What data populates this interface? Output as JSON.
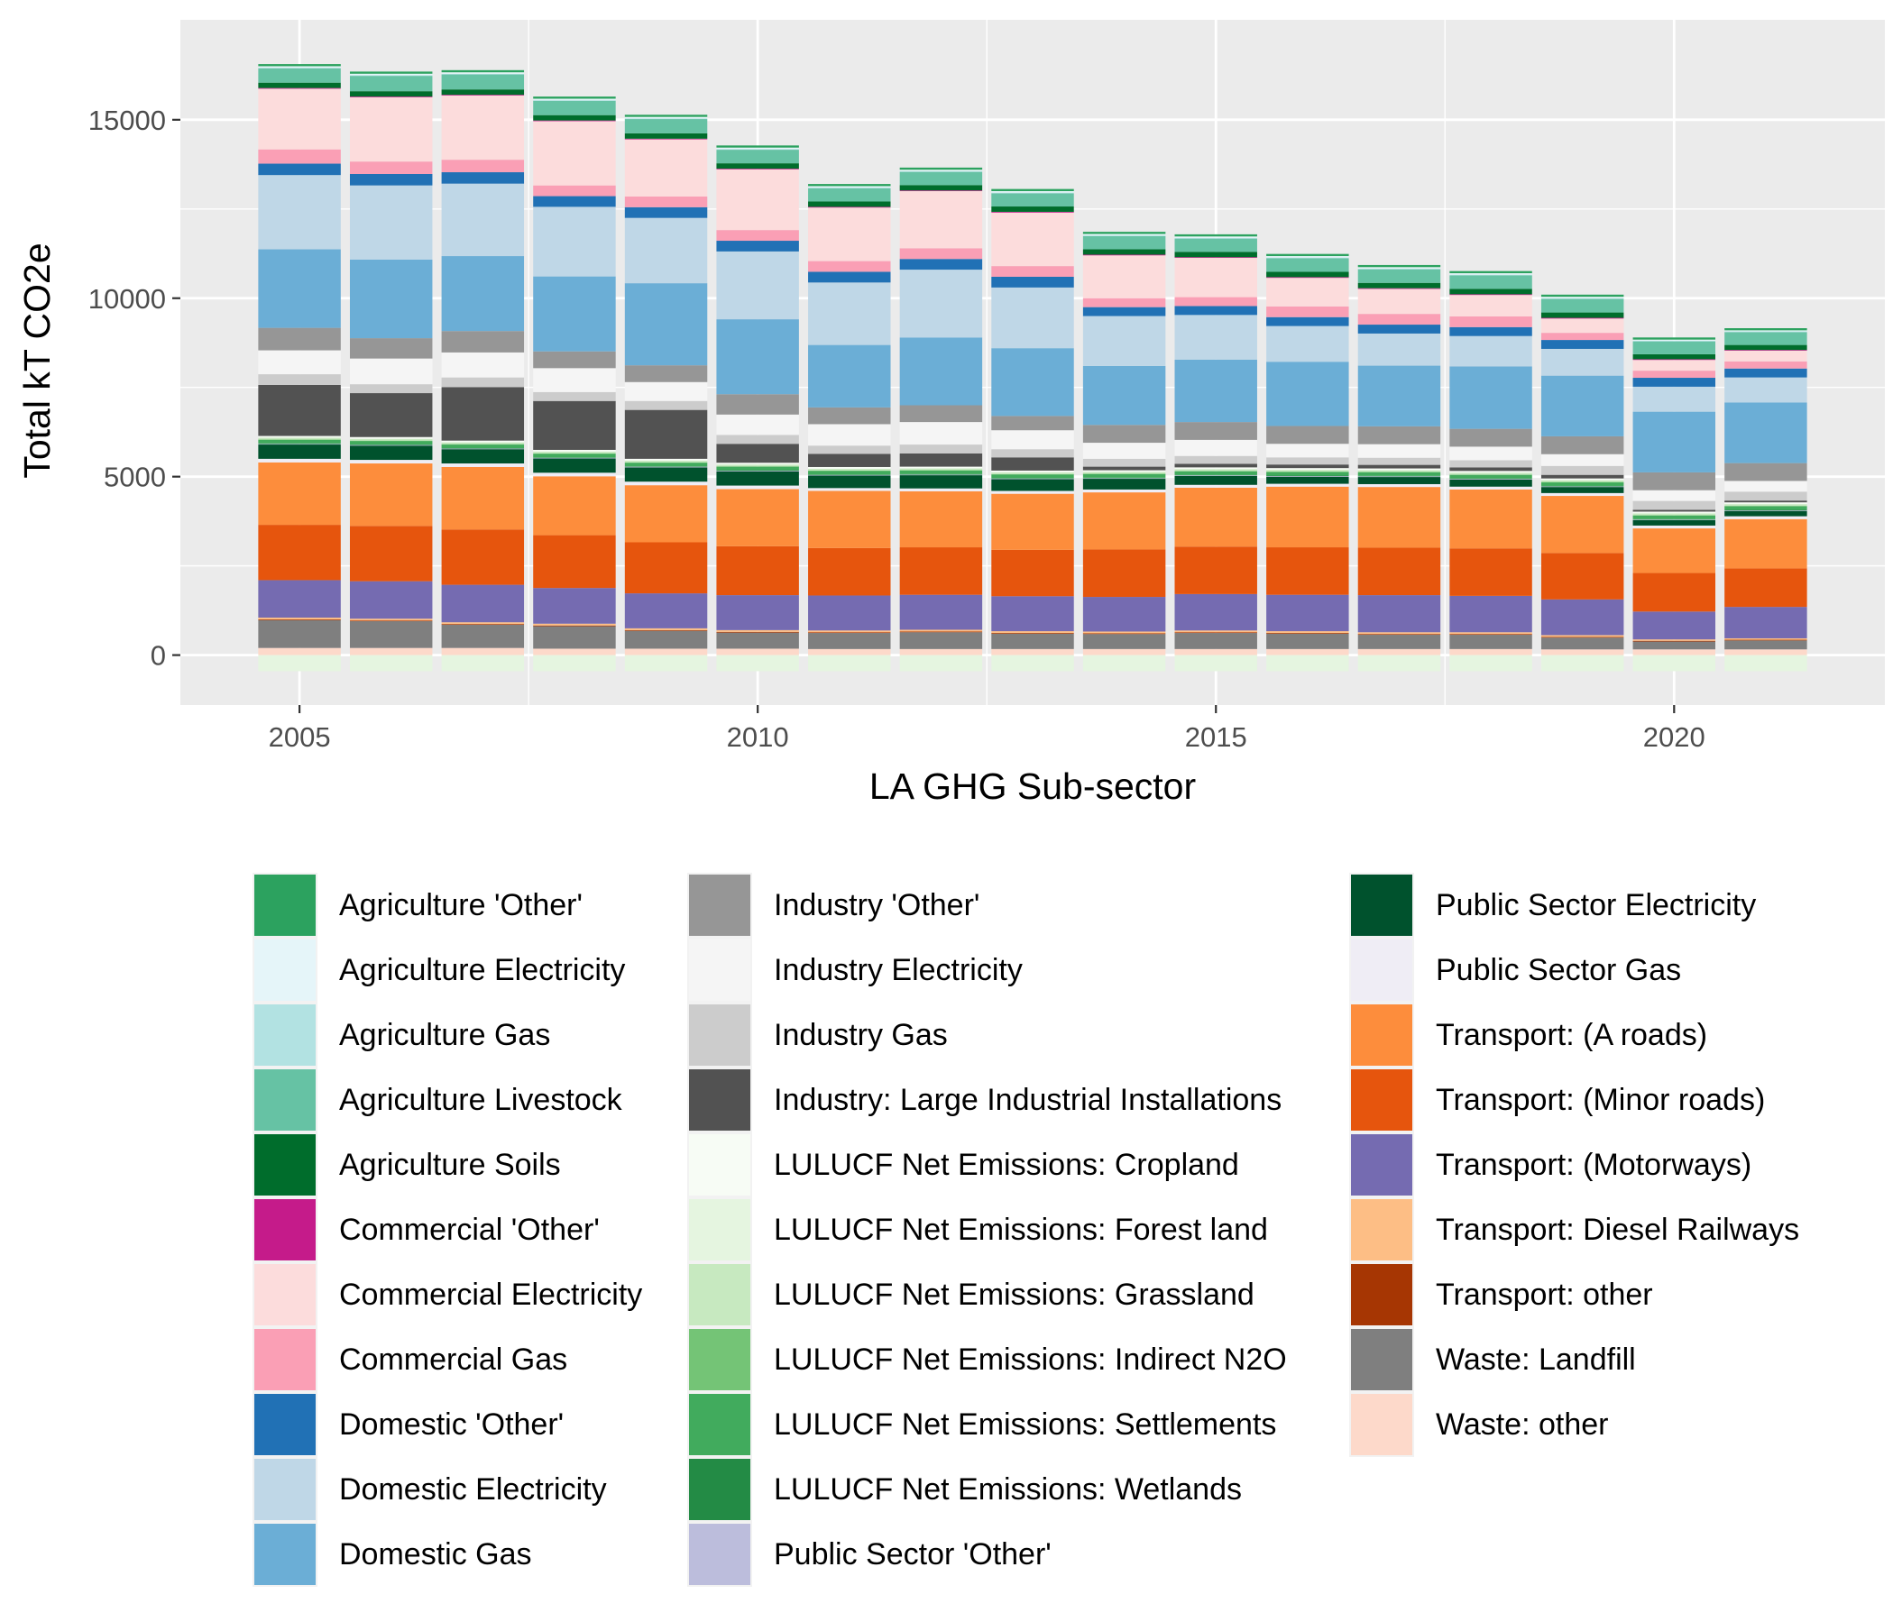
{
  "chart_data": {
    "type": "bar",
    "stacked": true,
    "title": "",
    "xlabel": "LA GHG Sub-sector",
    "ylabel": "Total kT CO2e",
    "x": [
      2005,
      2006,
      2007,
      2008,
      2009,
      2010,
      2011,
      2012,
      2013,
      2014,
      2015,
      2016,
      2017,
      2018,
      2019,
      2020,
      2021
    ],
    "xticks": [
      "2005",
      "2010",
      "2015",
      "2020"
    ],
    "yticks": [
      "0",
      "5000",
      "10000",
      "15000"
    ],
    "ylim": [
      -1400,
      17800
    ],
    "xlim": [
      2003.7,
      2022.3
    ],
    "grid": true,
    "legend_position": "bottom",
    "positive_stack_order": [
      "Waste: other",
      "Waste: Landfill",
      "Transport: other",
      "Transport: Diesel Railways",
      "Transport: (Motorways)",
      "Transport: (Minor roads)",
      "Transport: (A roads)",
      "Public Sector Gas",
      "Public Sector Electricity",
      "Public Sector 'Other'",
      "LULUCF Net Emissions: Wetlands",
      "LULUCF Net Emissions: Settlements",
      "LULUCF Net Emissions: Indirect N2O",
      "LULUCF Net Emissions: Grassland",
      "LULUCF Net Emissions: Cropland",
      "Industry: Large Industrial Installations",
      "Industry Gas",
      "Industry Electricity",
      "Industry 'Other'",
      "Domestic Gas",
      "Domestic Electricity",
      "Domestic 'Other'",
      "Commercial Gas",
      "Commercial Electricity",
      "Commercial 'Other'",
      "Agriculture Soils",
      "Agriculture Livestock",
      "Agriculture Gas",
      "Agriculture Electricity",
      "Agriculture 'Other'"
    ],
    "series": [
      {
        "name": "Agriculture 'Other'",
        "color": "#2ca25f",
        "values": [
          60,
          60,
          60,
          60,
          60,
          60,
          60,
          60,
          60,
          60,
          60,
          60,
          60,
          60,
          60,
          60,
          60
        ]
      },
      {
        "name": "Agriculture Electricity",
        "color": "#e5f5f9",
        "values": [
          40,
          40,
          40,
          40,
          40,
          40,
          40,
          40,
          40,
          40,
          40,
          40,
          40,
          40,
          40,
          30,
          30
        ]
      },
      {
        "name": "Agriculture Gas",
        "color": "#b2e2e2",
        "values": [
          20,
          20,
          20,
          20,
          20,
          20,
          20,
          20,
          20,
          20,
          20,
          20,
          20,
          20,
          20,
          20,
          20
        ]
      },
      {
        "name": "Agriculture Livestock",
        "color": "#66c2a4",
        "values": [
          400,
          430,
          420,
          400,
          400,
          380,
          370,
          370,
          370,
          370,
          370,
          380,
          380,
          380,
          380,
          360,
          360
        ]
      },
      {
        "name": "Agriculture Soils",
        "color": "#006d2c",
        "values": [
          150,
          150,
          150,
          150,
          150,
          150,
          150,
          150,
          150,
          150,
          150,
          150,
          150,
          150,
          150,
          140,
          140
        ]
      },
      {
        "name": "Commercial 'Other'",
        "color": "#c51b8a",
        "values": [
          20,
          20,
          20,
          20,
          20,
          20,
          20,
          20,
          20,
          20,
          20,
          20,
          20,
          20,
          20,
          20,
          20
        ]
      },
      {
        "name": "Commercial Electricity",
        "color": "#fcdcdc",
        "values": [
          1700,
          1800,
          1800,
          1800,
          1600,
          1700,
          1500,
          1600,
          1500,
          1200,
          1100,
          800,
          700,
          600,
          400,
          300,
          300
        ]
      },
      {
        "name": "Commercial Gas",
        "color": "#fa9fb5",
        "values": [
          400,
          350,
          350,
          300,
          300,
          300,
          300,
          300,
          300,
          250,
          250,
          300,
          300,
          300,
          200,
          200,
          200
        ]
      },
      {
        "name": "Domestic 'Other'",
        "color": "#2171b5",
        "values": [
          320,
          320,
          320,
          300,
          300,
          300,
          300,
          300,
          300,
          250,
          250,
          250,
          250,
          250,
          250,
          250,
          250
        ]
      },
      {
        "name": "Domestic Electricity",
        "color": "#bfd7e7",
        "values": [
          2080,
          2080,
          2030,
          1950,
          1830,
          1900,
          1750,
          1900,
          1700,
          1400,
          1250,
          1000,
          900,
          850,
          750,
          700,
          700
        ]
      },
      {
        "name": "Domestic Gas",
        "color": "#6baed6",
        "values": [
          2200,
          2200,
          2100,
          2100,
          2300,
          2100,
          1750,
          1900,
          1900,
          1650,
          1750,
          1800,
          1700,
          1750,
          1700,
          1700,
          1700
        ]
      },
      {
        "name": "Industry 'Other'",
        "color": "#969696",
        "values": [
          630,
          570,
          600,
          470,
          470,
          570,
          470,
          470,
          400,
          500,
          500,
          500,
          500,
          500,
          500,
          500,
          500
        ]
      },
      {
        "name": "Industry Electricity",
        "color": "#f5f5f5",
        "values": [
          670,
          720,
          700,
          670,
          530,
          570,
          600,
          630,
          530,
          450,
          450,
          380,
          380,
          380,
          330,
          300,
          300
        ]
      },
      {
        "name": "Industry Gas",
        "color": "#cccccc",
        "values": [
          300,
          250,
          270,
          250,
          250,
          250,
          230,
          250,
          230,
          220,
          220,
          200,
          200,
          200,
          250,
          250,
          250
        ]
      },
      {
        "name": "Industry: Large Industrial Installations",
        "color": "#525252",
        "values": [
          1430,
          1230,
          1500,
          1370,
          1370,
          530,
          370,
          370,
          370,
          100,
          100,
          100,
          100,
          100,
          100,
          50,
          50
        ]
      },
      {
        "name": "LULUCF Net Emissions: Cropland",
        "color": "#f7fcf5",
        "values": [
          50,
          50,
          50,
          50,
          50,
          50,
          50,
          50,
          50,
          50,
          50,
          50,
          50,
          50,
          50,
          50,
          50
        ]
      },
      {
        "name": "LULUCF Net Emissions: Grassland",
        "color": "#c7e9c0",
        "values": [
          50,
          50,
          50,
          50,
          50,
          50,
          50,
          50,
          50,
          50,
          50,
          50,
          50,
          50,
          50,
          50,
          50
        ]
      },
      {
        "name": "LULUCF Net Emissions: Indirect N2O",
        "color": "#74c476",
        "values": [
          10,
          10,
          10,
          10,
          10,
          10,
          10,
          10,
          10,
          10,
          10,
          10,
          10,
          10,
          10,
          10,
          10
        ]
      },
      {
        "name": "LULUCF Net Emissions: Settlements",
        "color": "#41ab5d",
        "values": [
          100,
          100,
          100,
          100,
          100,
          100,
          100,
          100,
          100,
          100,
          100,
          100,
          100,
          100,
          100,
          100,
          100
        ]
      },
      {
        "name": "LULUCF Net Emissions: Wetlands",
        "color": "#238b45",
        "values": [
          10,
          10,
          10,
          10,
          10,
          10,
          10,
          10,
          10,
          10,
          10,
          10,
          10,
          10,
          10,
          10,
          10
        ]
      },
      {
        "name": "Public Sector 'Other'",
        "color": "#bcbddc",
        "values": [
          20,
          20,
          20,
          20,
          20,
          20,
          20,
          20,
          20,
          20,
          20,
          20,
          20,
          20,
          20,
          20,
          20
        ]
      },
      {
        "name": "Public Sector Electricity",
        "color": "#00522d",
        "values": [
          400,
          400,
          400,
          400,
          400,
          400,
          350,
          370,
          330,
          300,
          250,
          200,
          200,
          200,
          170,
          150,
          150
        ]
      },
      {
        "name": "Public Sector Gas",
        "color": "#efedf5",
        "values": [
          100,
          100,
          100,
          100,
          100,
          100,
          80,
          80,
          80,
          80,
          80,
          80,
          80,
          80,
          80,
          80,
          80
        ]
      },
      {
        "name": "Transport: (A roads)",
        "color": "#fd8d3c",
        "values": [
          1750,
          1750,
          1750,
          1650,
          1600,
          1600,
          1600,
          1570,
          1570,
          1600,
          1650,
          1700,
          1700,
          1650,
          1600,
          1250,
          1380
        ]
      },
      {
        "name": "Transport: (Minor roads)",
        "color": "#e6550d",
        "values": [
          1550,
          1550,
          1550,
          1480,
          1430,
          1370,
          1330,
          1330,
          1300,
          1330,
          1330,
          1330,
          1330,
          1330,
          1300,
          1080,
          1080
        ]
      },
      {
        "name": "Transport: (Motorways)",
        "color": "#756bb1",
        "values": [
          1050,
          1050,
          1050,
          1000,
          980,
          980,
          980,
          980,
          980,
          970,
          1020,
          1020,
          1040,
          1020,
          1000,
          780,
          880
        ]
      },
      {
        "name": "Transport: Diesel Railways",
        "color": "#fdbe85",
        "values": [
          50,
          50,
          50,
          50,
          50,
          50,
          50,
          50,
          50,
          50,
          50,
          50,
          50,
          50,
          50,
          40,
          40
        ]
      },
      {
        "name": "Transport: other",
        "color": "#a63603",
        "values": [
          20,
          20,
          20,
          20,
          20,
          20,
          20,
          20,
          20,
          20,
          20,
          20,
          20,
          20,
          20,
          20,
          20
        ]
      },
      {
        "name": "Waste: Landfill",
        "color": "#7f7f7f",
        "values": [
          780,
          750,
          650,
          630,
          500,
          450,
          450,
          470,
          430,
          420,
          450,
          430,
          400,
          400,
          330,
          220,
          250
        ]
      },
      {
        "name": "Waste: other",
        "color": "#fdd9ca",
        "values": [
          200,
          200,
          200,
          180,
          180,
          180,
          170,
          170,
          170,
          170,
          170,
          170,
          170,
          170,
          160,
          160,
          160
        ]
      },
      {
        "name": "LULUCF Net Emissions: Forest land",
        "color": "#e5f5e0",
        "values": [
          -450,
          -450,
          -450,
          -450,
          -450,
          -450,
          -450,
          -450,
          -450,
          -450,
          -450,
          -450,
          -450,
          -450,
          -450,
          -450,
          -450
        ]
      }
    ]
  },
  "legend": {
    "columns": [
      [
        {
          "label": "Agriculture 'Other'",
          "color": "#2ca25f"
        },
        {
          "label": "Agriculture Electricity",
          "color": "#e5f5f9"
        },
        {
          "label": "Agriculture Gas",
          "color": "#b2e2e2"
        },
        {
          "label": "Agriculture Livestock",
          "color": "#66c2a4"
        },
        {
          "label": "Agriculture Soils",
          "color": "#006d2c"
        },
        {
          "label": "Commercial 'Other'",
          "color": "#c51b8a"
        },
        {
          "label": "Commercial Electricity",
          "color": "#fcdcdc"
        },
        {
          "label": "Commercial Gas",
          "color": "#fa9fb5"
        },
        {
          "label": "Domestic 'Other'",
          "color": "#2171b5"
        },
        {
          "label": "Domestic Electricity",
          "color": "#bfd7e7"
        },
        {
          "label": "Domestic Gas",
          "color": "#6baed6"
        }
      ],
      [
        {
          "label": "Industry 'Other'",
          "color": "#969696"
        },
        {
          "label": "Industry Electricity",
          "color": "#f5f5f5"
        },
        {
          "label": "Industry Gas",
          "color": "#cccccc"
        },
        {
          "label": "Industry: Large Industrial Installations",
          "color": "#525252"
        },
        {
          "label": "LULUCF Net Emissions: Cropland",
          "color": "#f7fcf5"
        },
        {
          "label": "LULUCF Net Emissions: Forest land",
          "color": "#e5f5e0"
        },
        {
          "label": "LULUCF Net Emissions: Grassland",
          "color": "#c7e9c0"
        },
        {
          "label": "LULUCF Net Emissions: Indirect N2O",
          "color": "#74c476"
        },
        {
          "label": "LULUCF Net Emissions: Settlements",
          "color": "#41ab5d"
        },
        {
          "label": "LULUCF Net Emissions: Wetlands",
          "color": "#238b45"
        },
        {
          "label": "Public Sector 'Other'",
          "color": "#bcbddc"
        }
      ],
      [
        {
          "label": "Public Sector Electricity",
          "color": "#00522d"
        },
        {
          "label": "Public Sector Gas",
          "color": "#efedf5"
        },
        {
          "label": "Transport: (A roads)",
          "color": "#fd8d3c"
        },
        {
          "label": "Transport: (Minor roads)",
          "color": "#e6550d"
        },
        {
          "label": "Transport: (Motorways)",
          "color": "#756bb1"
        },
        {
          "label": "Transport: Diesel Railways",
          "color": "#fdbe85"
        },
        {
          "label": "Transport: other",
          "color": "#a63603"
        },
        {
          "label": "Waste: Landfill",
          "color": "#7f7f7f"
        },
        {
          "label": "Waste: other",
          "color": "#fdd9ca"
        }
      ]
    ]
  }
}
